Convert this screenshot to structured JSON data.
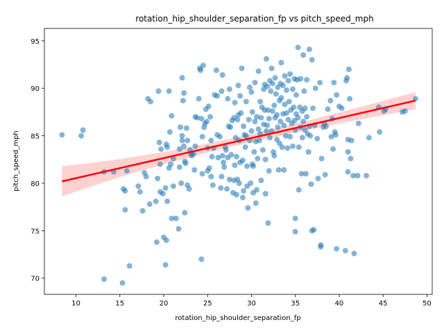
{
  "chart_data": {
    "type": "scatter",
    "title": "rotation_hip_shoulder_separation_fp vs pitch_speed_mph",
    "xlabel": "rotation_hip_shoulder_separation_fp",
    "ylabel": "pitch_speed_mph",
    "xlim": [
      6.4,
      50.6
    ],
    "ylim": [
      68.3,
      96.3
    ],
    "xticks": [
      10,
      15,
      20,
      25,
      30,
      35,
      40,
      45,
      50
    ],
    "yticks": [
      70,
      75,
      80,
      85,
      90,
      95
    ],
    "grid": false,
    "legend": "none",
    "colors": {
      "points": "#1f77b4",
      "trend": "#ff0000",
      "band": "#ffb3b3"
    },
    "regression": {
      "x": [
        8.4,
        48.7
      ],
      "y": [
        80.2,
        88.7
      ],
      "ci_upper": [
        81.8,
        89.6
      ],
      "ci_lower": [
        78.6,
        87.8
      ]
    },
    "points": [
      [
        8.4,
        85.1
      ],
      [
        10.6,
        85
      ],
      [
        10.8,
        85.6
      ],
      [
        13.2,
        69.9
      ],
      [
        13.2,
        81.2
      ],
      [
        14.3,
        81.2
      ],
      [
        15.3,
        69.5
      ],
      [
        15.4,
        79.4
      ],
      [
        15.6,
        77.2
      ],
      [
        15.6,
        79.2
      ],
      [
        15.8,
        81.3
      ],
      [
        16.1,
        71.3
      ],
      [
        17.1,
        79.7
      ],
      [
        17.3,
        79.1
      ],
      [
        17.6,
        77.1
      ],
      [
        17.8,
        81.1
      ],
      [
        18,
        80.7
      ],
      [
        18.2,
        88.9
      ],
      [
        18.4,
        77.8
      ],
      [
        18.5,
        88.6
      ],
      [
        19.1,
        78.1
      ],
      [
        19.2,
        73.8
      ],
      [
        19.3,
        80.5
      ],
      [
        19.4,
        89.7
      ],
      [
        19.5,
        84.3
      ],
      [
        19.6,
        79.1
      ],
      [
        19.6,
        82.0
      ],
      [
        19.7,
        83.6
      ],
      [
        19.9,
        78.9
      ],
      [
        20.0,
        74.3
      ],
      [
        20.2,
        79.5
      ],
      [
        20.2,
        71.4
      ],
      [
        20.3,
        74.0
      ],
      [
        20.3,
        84.1
      ],
      [
        20.4,
        83.8
      ],
      [
        20.4,
        78.1
      ],
      [
        20.6,
        89.7
      ],
      [
        20.6,
        81.6
      ],
      [
        20.7,
        85.4
      ],
      [
        20.8,
        82.0
      ],
      [
        20.9,
        87.1
      ],
      [
        20.9,
        76.3
      ],
      [
        21.1,
        79.7
      ],
      [
        21.1,
        82.6
      ],
      [
        21.4,
        76.3
      ],
      [
        21.7,
        75.2
      ],
      [
        21.8,
        83.6
      ],
      [
        21.8,
        81.7
      ],
      [
        21.9,
        85.9
      ],
      [
        22.0,
        80.0
      ],
      [
        22.1,
        84.5
      ],
      [
        22.1,
        85.0
      ],
      [
        22.1,
        91.1
      ],
      [
        22.2,
        88.7
      ],
      [
        22.3,
        89.5
      ],
      [
        22.3,
        83.9
      ],
      [
        22.4,
        76.9
      ],
      [
        22.4,
        82.3
      ],
      [
        22.5,
        82.1
      ],
      [
        22.6,
        85.8
      ],
      [
        22.7,
        84.5
      ],
      [
        22.7,
        79.8
      ],
      [
        22.9,
        79.4
      ],
      [
        23.0,
        83.5
      ],
      [
        23.1,
        83.1
      ],
      [
        23.2,
        82.9
      ],
      [
        23.4,
        83.1
      ],
      [
        23.5,
        81.4
      ],
      [
        23.6,
        83.9
      ],
      [
        23.6,
        87.0
      ],
      [
        23.8,
        86.9
      ],
      [
        24.0,
        88.9
      ],
      [
        24.1,
        92.1
      ],
      [
        24.2,
        91.9
      ],
      [
        24.3,
        72.0
      ],
      [
        24.3,
        86.8
      ],
      [
        24.4,
        84.9
      ],
      [
        24.4,
        81.0
      ],
      [
        24.5,
        92.4
      ],
      [
        24.6,
        85.9
      ],
      [
        24.7,
        86.3
      ],
      [
        24.8,
        87.8
      ],
      [
        24.9,
        86.5
      ],
      [
        25.0,
        81.3
      ],
      [
        25.0,
        83.7
      ],
      [
        25.1,
        88.1
      ],
      [
        25.2,
        81.6
      ],
      [
        25.3,
        87.0
      ],
      [
        25.4,
        84.5
      ],
      [
        25.4,
        80.7
      ],
      [
        25.5,
        82.8
      ],
      [
        25.6,
        79.8
      ],
      [
        25.7,
        83.7
      ],
      [
        25.8,
        89.3
      ],
      [
        26.0,
        91.9
      ],
      [
        26.1,
        89.2
      ],
      [
        26.1,
        85.1
      ],
      [
        26.2,
        82.7
      ],
      [
        26.4,
        84.9
      ],
      [
        26.5,
        79.5
      ],
      [
        26.6,
        80.7
      ],
      [
        26.6,
        89.7
      ],
      [
        26.7,
        82.9
      ],
      [
        26.7,
        91.4
      ],
      [
        26.8,
        82.2
      ],
      [
        26.9,
        81.7
      ],
      [
        27.0,
        83.8
      ],
      [
        27.1,
        83.5
      ],
      [
        27.2,
        79.4
      ],
      [
        27.3,
        82.7
      ],
      [
        27.3,
        88.9
      ],
      [
        27.4,
        86.0
      ],
      [
        27.5,
        80.4
      ],
      [
        27.5,
        89.9
      ],
      [
        27.6,
        85.9
      ],
      [
        27.7,
        83.0
      ],
      [
        27.8,
        86.6
      ],
      [
        27.9,
        79.0
      ],
      [
        28.0,
        80.3
      ],
      [
        28.0,
        86.9
      ],
      [
        28.1,
        88.5
      ],
      [
        28.1,
        81.9
      ],
      [
        28.2,
        84.8
      ],
      [
        28.3,
        82.8
      ],
      [
        28.3,
        78.8
      ],
      [
        28.4,
        86.7
      ],
      [
        28.4,
        80.4
      ],
      [
        28.5,
        90.3
      ],
      [
        28.5,
        87.2
      ],
      [
        28.6,
        84.5
      ],
      [
        28.6,
        80.0
      ],
      [
        28.7,
        89.2
      ],
      [
        28.7,
        82.2
      ],
      [
        28.8,
        87.4
      ],
      [
        28.9,
        92.1
      ],
      [
        29.0,
        78.5
      ],
      [
        29.0,
        82.4
      ],
      [
        29.1,
        79.2
      ],
      [
        29.1,
        86.0
      ],
      [
        29.2,
        85.1
      ],
      [
        29.3,
        83.8
      ],
      [
        29.4,
        88.6
      ],
      [
        29.4,
        85.0
      ],
      [
        29.5,
        81.8
      ],
      [
        29.5,
        79.7
      ],
      [
        29.6,
        77.4
      ],
      [
        29.7,
        86.7
      ],
      [
        29.8,
        84.5
      ],
      [
        29.8,
        90.1
      ],
      [
        29.9,
        80.0
      ],
      [
        30.0,
        89.6
      ],
      [
        30.0,
        85.5
      ],
      [
        30.1,
        82.0
      ],
      [
        30.1,
        87.5
      ],
      [
        30.2,
        81.8
      ],
      [
        30.2,
        79.0
      ],
      [
        30.3,
        83.3
      ],
      [
        30.4,
        90.6
      ],
      [
        30.4,
        86.5
      ],
      [
        30.5,
        77.9
      ],
      [
        30.5,
        84.4
      ],
      [
        30.6,
        79.3
      ],
      [
        30.6,
        87.0
      ],
      [
        30.7,
        82.6
      ],
      [
        30.8,
        91.8
      ],
      [
        30.8,
        85.7
      ],
      [
        30.9,
        84.5
      ],
      [
        31.0,
        88.6
      ],
      [
        31.0,
        85.2
      ],
      [
        31.1,
        80.3
      ],
      [
        31.1,
        86.9
      ],
      [
        31.2,
        88.0
      ],
      [
        31.3,
        83.5
      ],
      [
        31.4,
        89.9
      ],
      [
        31.4,
        86.2
      ],
      [
        31.5,
        90.4
      ],
      [
        31.5,
        87.7
      ],
      [
        31.6,
        78.9
      ],
      [
        31.6,
        82.5
      ],
      [
        31.7,
        93.1
      ],
      [
        31.7,
        85.5
      ],
      [
        31.8,
        90.2
      ],
      [
        31.8,
        86.1
      ],
      [
        31.9,
        75.8
      ],
      [
        31.9,
        87.7
      ],
      [
        32.0,
        81.3
      ],
      [
        32.0,
        86.8
      ],
      [
        32.1,
        90.8
      ],
      [
        32.1,
        84.8
      ],
      [
        32.2,
        89.7
      ],
      [
        32.3,
        92.1
      ],
      [
        32.3,
        85.5
      ],
      [
        32.4,
        90.5
      ],
      [
        32.4,
        87.6
      ],
      [
        32.5,
        83.3
      ],
      [
        32.6,
        88.2
      ],
      [
        32.6,
        82.9
      ],
      [
        32.7,
        91.1
      ],
      [
        32.7,
        86.9
      ],
      [
        32.8,
        89.4
      ],
      [
        32.9,
        84.6
      ],
      [
        32.9,
        87.2
      ],
      [
        33.0,
        90.1
      ],
      [
        33.0,
        85.9
      ],
      [
        33.1,
        81.4
      ],
      [
        33.2,
        88.7
      ],
      [
        33.2,
        84.2
      ],
      [
        33.3,
        90.5
      ],
      [
        33.3,
        86.5
      ],
      [
        33.4,
        92.7
      ],
      [
        33.4,
        89.0
      ],
      [
        33.5,
        83.8
      ],
      [
        33.6,
        90.3
      ],
      [
        33.6,
        87.3
      ],
      [
        33.7,
        86.1
      ],
      [
        33.7,
        81.4
      ],
      [
        33.8,
        91.3
      ],
      [
        33.8,
        88.3
      ],
      [
        33.9,
        85.0
      ],
      [
        34.0,
        89.8
      ],
      [
        34.0,
        87.4
      ],
      [
        34.1,
        83.7
      ],
      [
        34.2,
        90.8
      ],
      [
        34.2,
        86.7
      ],
      [
        34.3,
        88.6
      ],
      [
        34.4,
        84.9
      ],
      [
        34.4,
        91.5
      ],
      [
        34.5,
        87.7
      ],
      [
        34.6,
        86.3
      ],
      [
        34.7,
        89.9
      ],
      [
        34.7,
        83.9
      ],
      [
        34.8,
        88.0
      ],
      [
        34.9,
        91.0
      ],
      [
        34.9,
        86.6
      ],
      [
        35.0,
        85.6
      ],
      [
        35.0,
        76.3
      ],
      [
        35.0,
        74.9
      ],
      [
        35.1,
        89.3
      ],
      [
        35.1,
        87.3
      ],
      [
        35.2,
        90.9
      ],
      [
        35.3,
        94.3
      ],
      [
        35.3,
        86.9
      ],
      [
        35.4,
        83.8
      ],
      [
        35.4,
        79.3
      ],
      [
        35.5,
        88.0
      ],
      [
        35.6,
        91.0
      ],
      [
        35.6,
        85.9
      ],
      [
        35.7,
        81.0
      ],
      [
        35.8,
        87.6
      ],
      [
        35.8,
        84.8
      ],
      [
        35.9,
        93.5
      ],
      [
        35.9,
        86.5
      ],
      [
        36.0,
        89.7
      ],
      [
        36.1,
        87.9
      ],
      [
        36.1,
        85.6
      ],
      [
        36.2,
        81.0
      ],
      [
        36.3,
        90.9
      ],
      [
        36.3,
        87.0
      ],
      [
        36.4,
        85.2
      ],
      [
        36.5,
        83.3
      ],
      [
        36.6,
        94.1
      ],
      [
        36.6,
        86.0
      ],
      [
        36.7,
        85.0
      ],
      [
        36.8,
        79.9
      ],
      [
        36.9,
        75.0
      ],
      [
        36.9,
        93.0
      ],
      [
        37.0,
        87.9
      ],
      [
        37.1,
        75.1
      ],
      [
        37.2,
        86.1
      ],
      [
        37.3,
        90.0
      ],
      [
        37.5,
        84.7
      ],
      [
        37.6,
        80.5
      ],
      [
        37.8,
        90.6
      ],
      [
        37.9,
        73.5
      ],
      [
        37.9,
        73.3
      ],
      [
        38.0,
        82.6
      ],
      [
        38.2,
        85.9
      ],
      [
        38.3,
        86.3
      ],
      [
        38.4,
        80.9
      ],
      [
        38.5,
        86.0
      ],
      [
        38.7,
        87.8
      ],
      [
        39.0,
        88.7
      ],
      [
        39.1,
        84.9
      ],
      [
        39.2,
        86.8
      ],
      [
        39.3,
        83.6
      ],
      [
        39.4,
        90.6
      ],
      [
        39.5,
        85.4
      ],
      [
        39.6,
        85.1
      ],
      [
        39.7,
        73.1
      ],
      [
        39.7,
        89.3
      ],
      [
        40.0,
        88.1
      ],
      [
        40.3,
        87.9
      ],
      [
        40.7,
        72.9
      ],
      [
        40.8,
        90.8
      ],
      [
        40.9,
        91.1
      ],
      [
        41.0,
        84.6
      ],
      [
        41.0,
        83.3
      ],
      [
        41.0,
        81.2
      ],
      [
        41.1,
        92.0
      ],
      [
        41.2,
        88.9
      ],
      [
        41.3,
        82.6
      ],
      [
        41.4,
        84.5
      ],
      [
        41.6,
        80.8
      ],
      [
        41.7,
        72.6
      ],
      [
        42.1,
        80.8
      ],
      [
        42.2,
        86.3
      ],
      [
        43.1,
        80.8
      ],
      [
        43.4,
        84.8
      ],
      [
        44.5,
        88.0
      ],
      [
        44.6,
        85.4
      ],
      [
        45.1,
        87.6
      ],
      [
        45.3,
        87.8
      ],
      [
        47.2,
        87.5
      ],
      [
        47.5,
        87.6
      ],
      [
        48.7,
        88.9
      ]
    ]
  }
}
